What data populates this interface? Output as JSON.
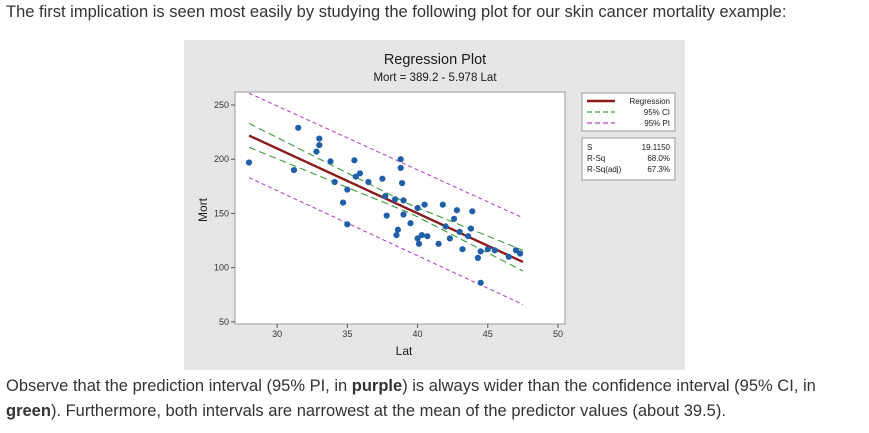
{
  "text": {
    "intro": "The first implication is seen most easily by studying the following plot for our skin cancer mortality example:",
    "outro_1": "Observe that the prediction interval (95% PI, in ",
    "outro_purple": "purple",
    "outro_2": ") is always wider than the confidence interval (95% CI, in ",
    "outro_green": "green",
    "outro_3": "). Furthermore, both intervals are narrowest at the mean of the predictor values (about 39.5)."
  },
  "colors": {
    "figure_background": "#e6e6e6",
    "regression_line": "#8b1a1a",
    "ci_line": "#3c9a3c",
    "pi_line": "#b446cc",
    "points": "#1f5fa8"
  },
  "chart_data": {
    "type": "scatter",
    "title": "Regression Plot",
    "subtitle": "Mort = 389.2 - 5.978 Lat",
    "xlabel": "Lat",
    "ylabel": "Mort",
    "xlim": [
      27,
      50.5
    ],
    "ylim": [
      48,
      262
    ],
    "xticks": [
      30,
      35,
      40,
      45,
      50
    ],
    "yticks": [
      50,
      100,
      150,
      200,
      250
    ],
    "grid": false,
    "legend_position": "right",
    "legend": [
      {
        "label": "Regression",
        "style": "solid",
        "color": "#8b1a1a"
      },
      {
        "label": "95% CI",
        "style": "dashed",
        "color": "#3c9a3c"
      },
      {
        "label": "95% PI",
        "style": "dashed",
        "color": "#b446cc"
      }
    ],
    "stats": [
      {
        "label": "S",
        "value": "19.1150"
      },
      {
        "label": "R-Sq",
        "value": "68.0%"
      },
      {
        "label": "R-Sq(adj)",
        "value": "67.3%"
      }
    ],
    "regression": {
      "intercept": 389.2,
      "slope": -5.978,
      "x_range": [
        28,
        47.5
      ]
    },
    "ci_band": {
      "x": [
        28,
        39.5,
        47.5
      ],
      "lower": [
        211,
        150.1,
        97
      ],
      "upper": [
        233,
        157.9,
        116
      ]
    },
    "pi_band": {
      "x": [
        28,
        47.5
      ],
      "lower": [
        183,
        66
      ],
      "upper": [
        261,
        146
      ]
    },
    "points": [
      {
        "x": 28,
        "y": 197
      },
      {
        "x": 31.2,
        "y": 190
      },
      {
        "x": 31.5,
        "y": 229
      },
      {
        "x": 32.8,
        "y": 207
      },
      {
        "x": 33,
        "y": 219
      },
      {
        "x": 33,
        "y": 213
      },
      {
        "x": 33.8,
        "y": 198
      },
      {
        "x": 34.1,
        "y": 179
      },
      {
        "x": 34.7,
        "y": 160
      },
      {
        "x": 35,
        "y": 172
      },
      {
        "x": 35,
        "y": 140
      },
      {
        "x": 35.5,
        "y": 199
      },
      {
        "x": 35.6,
        "y": 184
      },
      {
        "x": 35.9,
        "y": 187
      },
      {
        "x": 36.5,
        "y": 179
      },
      {
        "x": 37.5,
        "y": 182
      },
      {
        "x": 37.7,
        "y": 166
      },
      {
        "x": 37.8,
        "y": 148
      },
      {
        "x": 38.4,
        "y": 163
      },
      {
        "x": 38.5,
        "y": 130
      },
      {
        "x": 38.6,
        "y": 135
      },
      {
        "x": 38.8,
        "y": 200
      },
      {
        "x": 38.8,
        "y": 192
      },
      {
        "x": 38.9,
        "y": 178
      },
      {
        "x": 39,
        "y": 162
      },
      {
        "x": 39,
        "y": 149
      },
      {
        "x": 39.5,
        "y": 141
      },
      {
        "x": 40,
        "y": 155
      },
      {
        "x": 40,
        "y": 127
      },
      {
        "x": 40.1,
        "y": 122
      },
      {
        "x": 40.3,
        "y": 130
      },
      {
        "x": 40.5,
        "y": 158
      },
      {
        "x": 40.7,
        "y": 129
      },
      {
        "x": 41.5,
        "y": 122
      },
      {
        "x": 41.8,
        "y": 158
      },
      {
        "x": 42,
        "y": 138
      },
      {
        "x": 42.3,
        "y": 127
      },
      {
        "x": 42.6,
        "y": 145
      },
      {
        "x": 42.8,
        "y": 153
      },
      {
        "x": 43,
        "y": 133
      },
      {
        "x": 43.2,
        "y": 117
      },
      {
        "x": 43.6,
        "y": 129
      },
      {
        "x": 43.8,
        "y": 136
      },
      {
        "x": 43.9,
        "y": 152
      },
      {
        "x": 44.3,
        "y": 109
      },
      {
        "x": 44.5,
        "y": 115
      },
      {
        "x": 44.5,
        "y": 86
      },
      {
        "x": 45,
        "y": 117
      },
      {
        "x": 45.5,
        "y": 116
      },
      {
        "x": 46.5,
        "y": 110
      },
      {
        "x": 47,
        "y": 116
      },
      {
        "x": 47.3,
        "y": 113
      }
    ]
  }
}
